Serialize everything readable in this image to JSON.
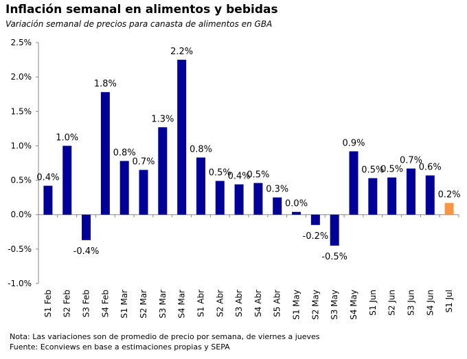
{
  "chart_data": {
    "type": "bar",
    "title": "Inflación semanal en alimentos y bebidas",
    "subtitle": "Variación semanal de precios para canasta de alimentos en GBA",
    "categories": [
      "S1 Feb",
      "S2 Feb",
      "S3 Feb",
      "S4 Feb",
      "S1 Mar",
      "S2 Mar",
      "S3 Mar",
      "S4 Mar",
      "S1 Abr",
      "S2 Abr",
      "S3 Abr",
      "S4 Abr",
      "S5 Abr",
      "S1 May",
      "S2 May",
      "S3 May",
      "S4 May",
      "S1 Jun",
      "S2 Jun",
      "S3 Jun",
      "S4 Jun",
      "S1 Jul"
    ],
    "values": [
      0.42,
      1.0,
      -0.37,
      1.78,
      0.78,
      0.65,
      1.27,
      2.25,
      0.83,
      0.49,
      0.44,
      0.46,
      0.25,
      0.04,
      -0.15,
      -0.45,
      0.92,
      0.53,
      0.54,
      0.67,
      0.57,
      0.17
    ],
    "data_labels": [
      "0.4%",
      "1.0%",
      "-0.4%",
      "1.8%",
      "0.8%",
      "0.7%",
      "1.3%",
      "2.2%",
      "0.8%",
      "0.5%",
      "0.4%",
      "0.5%",
      "0.3%",
      "0.0%",
      "-0.2%",
      "-0.5%",
      "0.9%",
      "0.5%",
      "0.5%",
      "0.7%",
      "0.6%",
      "0.2%"
    ],
    "y_ticks": [
      "-1.0%",
      "-0.5%",
      "0.0%",
      "0.5%",
      "1.0%",
      "1.5%",
      "2.0%",
      "2.5%"
    ],
    "ylim": [
      -1.0,
      2.5
    ],
    "grid": false,
    "legend": "none",
    "colors": {
      "default": "#000099",
      "highlight": "#F79646"
    },
    "highlight_index": 21
  },
  "notes": {
    "line1": "Nota: Las variaciones son de promedio de precio por semana, de viernes a jueves",
    "line2": "Fuente: Econviews en base a estimaciones propias y SEPA"
  }
}
